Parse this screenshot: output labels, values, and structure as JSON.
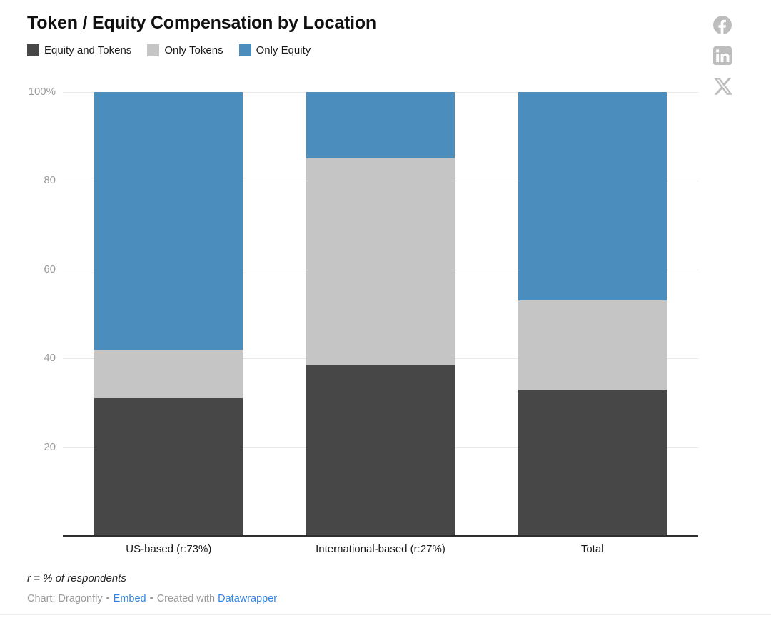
{
  "header": {
    "title": "Token / Equity Compensation by Location"
  },
  "social": {
    "icons": [
      "facebook-share-icon",
      "linkedin-share-icon",
      "x-share-icon"
    ],
    "icon_color": "#b9b9b9"
  },
  "chart_data": {
    "type": "bar",
    "stacked": true,
    "title": "Token / Equity Compensation by Location",
    "categories": [
      "US-based (r:73%)",
      "International-based (r:27%)",
      "Total"
    ],
    "series": [
      {
        "name": "Equity and Tokens",
        "color": "#474747",
        "values": [
          31,
          38.5,
          33
        ]
      },
      {
        "name": "Only Tokens",
        "color": "#c5c5c5",
        "values": [
          11,
          46.5,
          20
        ]
      },
      {
        "name": "Only Equity",
        "color": "#4b8dbd",
        "values": [
          58,
          15,
          47
        ]
      }
    ],
    "xlabel": "",
    "ylabel": "",
    "ylim": [
      0,
      100
    ],
    "yticks": [
      {
        "value": 100,
        "label": "100%"
      },
      {
        "value": 80,
        "label": "80"
      },
      {
        "value": 60,
        "label": "60"
      },
      {
        "value": 40,
        "label": "40"
      },
      {
        "value": 20,
        "label": "20"
      }
    ],
    "grid": true,
    "legend_position": "top"
  },
  "footer": {
    "note": "r = % of respondents",
    "credit": "Chart: Dragonfly",
    "separator": "•",
    "embed_link": "Embed",
    "created_with": "Created with",
    "datawrapper_link": "Datawrapper"
  }
}
